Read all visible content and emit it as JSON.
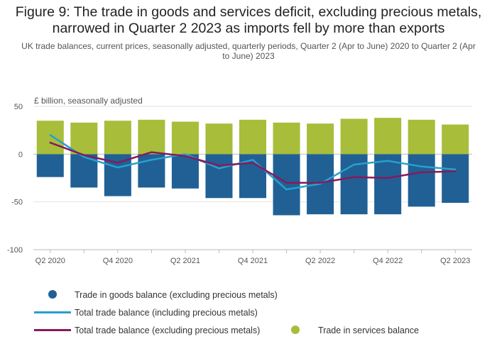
{
  "title": "Figure 9: The trade in goods and services deficit, excluding precious metals, narrowed in Quarter 2 2023 as imports fell by more than exports",
  "subtitle": "UK trade balances, current prices, seasonally adjusted, quarterly periods, Quarter 2 (Apr to June) 2020 to Quarter 2 (Apr to June) 2023",
  "chart_data": {
    "type": "bar",
    "ylabel": "£ billion, seasonally adjusted",
    "ylim": [
      -100,
      50
    ],
    "yticks": [
      50,
      0,
      -50,
      -100
    ],
    "ytick_labels": [
      "50",
      "0",
      "-50",
      "-100"
    ],
    "grid": true,
    "categories": [
      "Q2 2020",
      "Q3 2020",
      "Q4 2020",
      "Q1 2021",
      "Q2 2021",
      "Q3 2021",
      "Q4 2021",
      "Q1 2022",
      "Q2 2022",
      "Q3 2022",
      "Q4 2022",
      "Q1 2023",
      "Q2 2023"
    ],
    "xtick_labels": [
      "Q2 2020",
      "",
      "Q4 2020",
      "",
      "Q2 2021",
      "",
      "Q4 2021",
      "",
      "Q2 2022",
      "",
      "Q4 2022",
      "",
      "Q2 2023"
    ],
    "series": [
      {
        "name": "Trade in goods balance (excluding precious metals)",
        "kind": "bar",
        "color": "#206095",
        "values": [
          -24,
          -35,
          -44,
          -35,
          -36,
          -46,
          -46,
          -64,
          -63,
          -63,
          -63,
          -55,
          -51
        ]
      },
      {
        "name": "Trade in services balance",
        "kind": "bar",
        "color": "#a8bd3a",
        "values": [
          35,
          33,
          35,
          36,
          34,
          32,
          36,
          33,
          32,
          37,
          38,
          36,
          31
        ]
      },
      {
        "name": "Total trade balance (including precious metals)",
        "kind": "line",
        "color": "#27a0cc",
        "values": [
          20,
          -3,
          -14,
          -6,
          0,
          -15,
          -6,
          -37,
          -31,
          -11,
          -7,
          -13,
          -16
        ]
      },
      {
        "name": "Total trade balance (excluding precious metals)",
        "kind": "line",
        "color": "#871a5b",
        "values": [
          12,
          -1,
          -9,
          2,
          -2,
          -12,
          -9,
          -30,
          -30,
          -24,
          -25,
          -19,
          -18
        ]
      }
    ]
  },
  "legend": {
    "goods": "Trade in goods balance (excluding precious metals)",
    "total_incl": "Total trade balance (including precious metals)",
    "total_excl": "Total trade balance (excluding precious metals)",
    "services": "Trade in services balance"
  }
}
